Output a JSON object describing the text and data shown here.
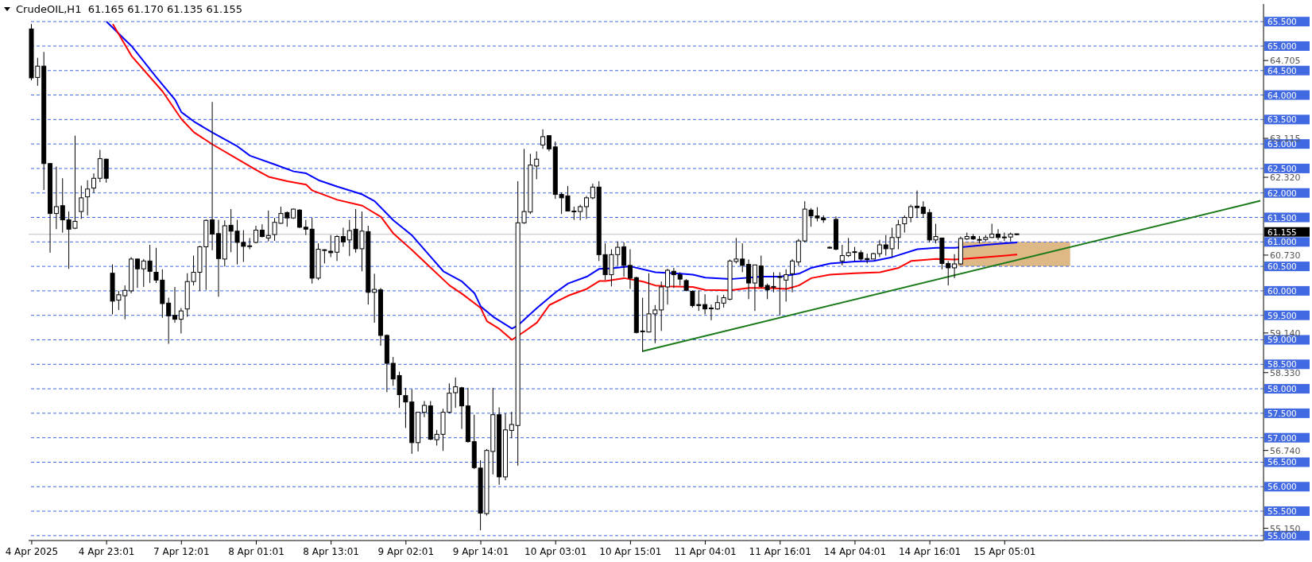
{
  "chart_data": {
    "type": "candlestick",
    "title": "CrudeOIL,H1  61.165 61.170 61.135 61.155",
    "categories": [
      "4 Apr 2025",
      null,
      null,
      null,
      null,
      null,
      null,
      null,
      null,
      null,
      null,
      null,
      "4 Apr 23:01",
      null,
      null,
      null,
      null,
      null,
      null,
      null,
      null,
      null,
      null,
      null,
      "7 Apr 12:01",
      null,
      null,
      null,
      null,
      null,
      null,
      null,
      null,
      null,
      null,
      null,
      "8 Apr 01:01",
      null,
      null,
      null,
      null,
      null,
      null,
      null,
      null,
      null,
      null,
      null,
      "8 Apr 13:01",
      null,
      null,
      null,
      null,
      null,
      null,
      null,
      null,
      null,
      null,
      null,
      "9 Apr 02:01",
      null,
      null,
      null,
      null,
      null,
      null,
      null,
      null,
      null,
      null,
      null,
      "9 Apr 14:01",
      null,
      null,
      null,
      null,
      null,
      null,
      null,
      null,
      null,
      null,
      null,
      "10 Apr 03:01",
      null,
      null,
      null,
      null,
      null,
      null,
      null,
      null,
      null,
      null,
      null,
      "10 Apr 15:01",
      null,
      null,
      null,
      null,
      null,
      null,
      null,
      null,
      null,
      null,
      null,
      "11 Apr 04:01",
      null,
      null,
      null,
      null,
      null,
      null,
      null,
      null,
      null,
      null,
      null,
      "11 Apr 16:01",
      null,
      null,
      null,
      null,
      null,
      null,
      null,
      null,
      null,
      null,
      null,
      "14 Apr 04:01",
      null,
      null,
      null,
      null,
      null,
      null,
      null,
      null,
      null,
      null,
      null,
      "14 Apr 16:01",
      null,
      null,
      null,
      null,
      null,
      null,
      null,
      null,
      null,
      null,
      null,
      "15 Apr 05:01",
      null,
      null,
      null,
      null,
      null,
      null,
      null,
      null,
      null,
      null,
      null,
      null,
      null,
      null,
      null,
      null,
      null,
      null,
      null,
      null,
      null,
      null,
      null,
      null,
      null,
      null,
      null,
      null,
      null,
      null,
      null,
      null,
      null,
      null,
      null,
      null,
      null,
      null,
      null,
      null,
      null
    ],
    "ohlc": [
      [
        65.35,
        65.45,
        64.3,
        64.35
      ],
      [
        64.36,
        64.76,
        64.19,
        64.59
      ],
      [
        64.59,
        64.88,
        62.06,
        62.6
      ],
      [
        62.6,
        62.61,
        60.78,
        61.58
      ],
      [
        61.58,
        62.54,
        61.26,
        61.72
      ],
      [
        61.74,
        62.3,
        61.19,
        61.45
      ],
      [
        61.45,
        61.62,
        60.45,
        61.26
      ],
      [
        61.28,
        63.17,
        61.26,
        61.42
      ],
      [
        61.62,
        62.15,
        61.47,
        61.9
      ],
      [
        61.92,
        62.26,
        61.54,
        62.08
      ],
      [
        62.1,
        62.4,
        62.0,
        62.3
      ],
      [
        62.3,
        62.88,
        62.22,
        62.7
      ],
      [
        62.69,
        62.7,
        62.21,
        62.3
      ],
      [
        60.36,
        60.54,
        59.52,
        59.79
      ],
      [
        59.81,
        60.0,
        59.61,
        59.92
      ],
      [
        59.9,
        60.11,
        59.42,
        60.01
      ],
      [
        60.0,
        60.69,
        59.95,
        60.65
      ],
      [
        60.65,
        60.66,
        60.06,
        60.45
      ],
      [
        60.45,
        60.65,
        60.08,
        60.61
      ],
      [
        60.61,
        60.94,
        60.16,
        60.4
      ],
      [
        60.38,
        60.88,
        60.16,
        60.22
      ],
      [
        60.22,
        60.44,
        59.45,
        59.74
      ],
      [
        59.75,
        59.86,
        58.92,
        59.49
      ],
      [
        59.5,
        60.08,
        59.35,
        59.42
      ],
      [
        59.42,
        59.65,
        59.13,
        59.59
      ],
      [
        59.63,
        60.36,
        59.47,
        60.19
      ],
      [
        60.19,
        60.72,
        60.11,
        60.38
      ],
      [
        60.38,
        60.92,
        60.0,
        60.9
      ],
      [
        60.9,
        61.46,
        60.02,
        61.44
      ],
      [
        61.45,
        63.86,
        60.83,
        61.16
      ],
      [
        61.17,
        61.45,
        59.88,
        60.66
      ],
      [
        60.65,
        61.44,
        60.5,
        61.33
      ],
      [
        61.34,
        61.67,
        60.79,
        61.22
      ],
      [
        61.22,
        61.45,
        60.54,
        60.99
      ],
      [
        60.99,
        61.24,
        60.59,
        60.91
      ],
      [
        60.91,
        61.08,
        60.85,
        60.92
      ],
      [
        60.99,
        61.33,
        60.97,
        61.24
      ],
      [
        61.24,
        61.36,
        61.09,
        61.11
      ],
      [
        61.08,
        61.64,
        61.01,
        61.13
      ],
      [
        61.15,
        61.49,
        61.02,
        61.4
      ],
      [
        61.38,
        61.72,
        61.37,
        61.58
      ],
      [
        61.6,
        61.62,
        61.31,
        61.49
      ],
      [
        61.49,
        61.68,
        61.47,
        61.67
      ],
      [
        61.65,
        61.67,
        61.28,
        61.3
      ],
      [
        61.3,
        61.45,
        61.14,
        61.26
      ],
      [
        61.26,
        61.49,
        60.15,
        60.26
      ],
      [
        60.26,
        60.97,
        60.22,
        60.85
      ],
      [
        60.83,
        60.85,
        60.56,
        60.84
      ],
      [
        60.81,
        61.14,
        60.69,
        60.78
      ],
      [
        60.79,
        61.14,
        60.61,
        61.11
      ],
      [
        61.11,
        61.29,
        60.9,
        61.0
      ],
      [
        61.04,
        61.45,
        60.71,
        61.23
      ],
      [
        61.26,
        61.67,
        60.78,
        60.86
      ],
      [
        60.86,
        61.62,
        60.4,
        61.22
      ],
      [
        61.21,
        61.33,
        59.72,
        59.97
      ],
      [
        59.97,
        60.35,
        59.35,
        60.03
      ],
      [
        60.02,
        60.06,
        58.88,
        59.09
      ],
      [
        59.09,
        59.11,
        57.93,
        58.52
      ],
      [
        58.52,
        58.65,
        58.06,
        58.2
      ],
      [
        58.27,
        58.35,
        57.61,
        57.88
      ],
      [
        57.86,
        58.02,
        57.2,
        57.73
      ],
      [
        57.73,
        57.99,
        56.67,
        56.9
      ],
      [
        56.9,
        57.52,
        56.72,
        57.52
      ],
      [
        57.52,
        57.75,
        57.42,
        57.66
      ],
      [
        57.65,
        57.75,
        56.95,
        56.97
      ],
      [
        56.96,
        57.16,
        56.84,
        57.07
      ],
      [
        57.07,
        57.59,
        56.73,
        57.52
      ],
      [
        57.52,
        58.11,
        57.5,
        57.91
      ],
      [
        57.92,
        58.23,
        57.61,
        58.04
      ],
      [
        58.02,
        58.04,
        57.18,
        57.65
      ],
      [
        57.65,
        58.02,
        56.9,
        56.92
      ],
      [
        56.92,
        57.47,
        56.36,
        56.39
      ],
      [
        56.38,
        56.54,
        55.11,
        55.46
      ],
      [
        55.45,
        56.77,
        55.41,
        56.74
      ],
      [
        56.72,
        58.02,
        56.25,
        57.47
      ],
      [
        57.47,
        57.62,
        56.04,
        56.2
      ],
      [
        56.2,
        57.5,
        56.13,
        57.16
      ],
      [
        57.15,
        57.53,
        56.99,
        57.27
      ],
      [
        57.25,
        62.24,
        56.43,
        61.39
      ],
      [
        61.39,
        62.9,
        61.37,
        61.62
      ],
      [
        61.61,
        62.8,
        61.57,
        62.57
      ],
      [
        62.55,
        62.85,
        62.28,
        62.69
      ],
      [
        62.98,
        63.3,
        62.9,
        63.15
      ],
      [
        63.17,
        63.17,
        62.85,
        62.9
      ],
      [
        62.94,
        63.05,
        61.88,
        61.97
      ],
      [
        61.97,
        62.01,
        61.57,
        61.9
      ],
      [
        61.94,
        62.14,
        61.62,
        61.63
      ],
      [
        61.63,
        61.72,
        61.45,
        61.63
      ],
      [
        61.62,
        61.76,
        61.44,
        61.72
      ],
      [
        61.72,
        61.94,
        61.47,
        61.9
      ],
      [
        61.9,
        62.19,
        61.87,
        62.12
      ],
      [
        62.12,
        62.24,
        60.61,
        60.74
      ],
      [
        60.74,
        60.97,
        60.22,
        60.33
      ],
      [
        60.33,
        60.85,
        60.09,
        60.74
      ],
      [
        60.74,
        61.01,
        60.51,
        60.89
      ],
      [
        60.9,
        60.99,
        60.29,
        60.52
      ],
      [
        60.52,
        60.85,
        60.04,
        60.26
      ],
      [
        60.27,
        60.29,
        59.13,
        59.15
      ],
      [
        59.18,
        59.86,
        58.75,
        59.18
      ],
      [
        59.16,
        60.36,
        59.15,
        59.53
      ],
      [
        59.53,
        59.71,
        58.93,
        59.61
      ],
      [
        59.61,
        60.19,
        59.18,
        60.08
      ],
      [
        60.08,
        60.45,
        59.72,
        60.42
      ],
      [
        60.4,
        60.47,
        60.06,
        60.33
      ],
      [
        60.33,
        60.38,
        60.11,
        60.24
      ],
      [
        60.21,
        60.24,
        59.99,
        60.01
      ],
      [
        59.99,
        60.01,
        59.66,
        59.7
      ],
      [
        59.72,
        60.01,
        59.59,
        59.7
      ],
      [
        59.72,
        59.93,
        59.52,
        59.63
      ],
      [
        59.65,
        59.72,
        59.4,
        59.65
      ],
      [
        59.63,
        59.91,
        59.61,
        59.76
      ],
      [
        59.75,
        59.92,
        59.66,
        59.86
      ],
      [
        59.83,
        60.64,
        59.81,
        60.61
      ],
      [
        60.6,
        61.08,
        60.56,
        60.65
      ],
      [
        60.65,
        60.97,
        60.38,
        60.52
      ],
      [
        60.54,
        60.64,
        59.83,
        60.16
      ],
      [
        60.16,
        60.53,
        59.59,
        60.53
      ],
      [
        60.51,
        60.72,
        60.06,
        60.09
      ],
      [
        60.11,
        60.15,
        59.83,
        60.02
      ],
      [
        60.09,
        60.38,
        59.97,
        60.09
      ],
      [
        60.28,
        60.38,
        59.5,
        60.29
      ],
      [
        60.22,
        60.44,
        59.78,
        60.33
      ],
      [
        60.35,
        60.65,
        59.97,
        60.61
      ],
      [
        60.59,
        61.06,
        60.51,
        61.02
      ],
      [
        61.02,
        61.83,
        60.99,
        61.67
      ],
      [
        61.65,
        61.69,
        61.31,
        61.53
      ],
      [
        61.53,
        61.71,
        61.42,
        61.49
      ],
      [
        61.49,
        61.54,
        61.39,
        61.45
      ],
      [
        60.88,
        60.91,
        60.86,
        60.89
      ],
      [
        61.46,
        61.52,
        60.83,
        60.85
      ],
      [
        60.61,
        60.94,
        60.52,
        60.72
      ],
      [
        60.72,
        61.08,
        60.69,
        60.78
      ],
      [
        60.79,
        60.9,
        60.61,
        60.8
      ],
      [
        60.78,
        60.83,
        60.61,
        60.65
      ],
      [
        60.66,
        60.76,
        60.56,
        60.64
      ],
      [
        60.65,
        60.78,
        60.65,
        60.76
      ],
      [
        60.76,
        61.04,
        60.69,
        60.94
      ],
      [
        60.94,
        61.14,
        60.72,
        60.86
      ],
      [
        60.86,
        61.29,
        60.69,
        61.09
      ],
      [
        61.09,
        61.45,
        60.85,
        61.35
      ],
      [
        61.37,
        61.54,
        61.19,
        61.5
      ],
      [
        61.5,
        61.76,
        61.4,
        61.72
      ],
      [
        61.73,
        62.05,
        61.49,
        61.7
      ],
      [
        61.71,
        61.83,
        61.49,
        61.58
      ],
      [
        61.6,
        61.67,
        60.99,
        61.04
      ],
      [
        61.04,
        61.37,
        60.97,
        61.11
      ],
      [
        61.08,
        61.08,
        60.44,
        60.56
      ],
      [
        60.56,
        60.61,
        60.11,
        60.47
      ],
      [
        60.47,
        60.75,
        60.26,
        60.55
      ],
      [
        60.55,
        61.11,
        60.53,
        61.07
      ],
      [
        61.06,
        61.19,
        61.04,
        61.11
      ],
      [
        61.11,
        61.16,
        61.04,
        61.06
      ],
      [
        61.05,
        61.12,
        60.97,
        61.05
      ],
      [
        61.05,
        61.14,
        61.01,
        61.09
      ],
      [
        61.09,
        61.37,
        61.08,
        61.16
      ],
      [
        61.16,
        61.26,
        61.04,
        61.09
      ],
      [
        61.1,
        61.19,
        61.02,
        61.1
      ],
      [
        61.1,
        61.19,
        61.01,
        61.16
      ],
      [
        61.165,
        61.17,
        61.135,
        61.155
      ],
      null,
      null,
      null,
      null,
      null,
      null,
      null,
      null,
      null,
      null,
      null,
      null,
      null,
      null,
      null,
      null,
      null,
      null,
      null,
      null,
      null,
      null,
      null,
      null,
      null,
      null,
      null,
      null,
      null,
      null,
      null,
      null,
      null,
      null,
      null,
      null,
      null,
      null,
      null
    ],
    "series": [
      {
        "type": "line",
        "color": "#0000ff",
        "values": [
          null,
          null,
          null,
          null,
          null,
          null,
          null,
          null,
          null,
          null,
          null,
          null,
          65.5,
          null,
          null,
          null,
          65.0,
          null,
          null,
          null,
          64.36,
          null,
          null,
          63.9,
          63.65,
          null,
          63.46,
          null,
          null,
          63.23,
          null,
          null,
          null,
          62.95,
          null,
          62.76,
          null,
          null,
          null,
          62.58,
          null,
          null,
          62.44,
          null,
          62.4,
          null,
          62.26,
          null,
          null,
          62.13,
          null,
          null,
          null,
          61.97,
          null,
          61.83,
          null,
          null,
          61.44,
          null,
          null,
          61.13,
          null,
          null,
          60.69,
          null,
          60.4,
          null,
          null,
          60.19,
          null,
          59.95,
          59.68,
          null,
          59.47,
          null,
          null,
          59.23,
          59.3,
          null,
          null,
          59.65,
          null,
          null,
          59.97,
          null,
          60.15,
          null,
          null,
          60.29,
          null,
          60.45,
          null,
          60.46,
          null,
          null,
          60.5,
          null,
          null,
          null,
          60.38,
          null,
          null,
          null,
          60.35,
          null,
          60.33,
          null,
          60.27,
          null,
          null,
          null,
          60.24,
          null,
          null,
          null,
          null,
          60.29,
          null,
          null,
          60.29,
          null,
          null,
          60.35,
          null,
          60.47,
          null,
          null,
          60.56,
          null,
          null,
          null,
          60.6,
          null,
          null,
          60.61,
          null,
          null,
          60.69,
          null,
          null,
          null,
          60.85,
          null,
          null,
          60.88,
          null,
          null,
          60.88,
          null,
          null,
          null,
          null,
          60.94,
          null,
          null,
          null,
          null,
          60.99,
          null,
          null,
          null,
          null,
          null,
          null,
          null,
          null,
          null,
          null,
          null,
          null,
          null,
          null,
          null,
          null,
          null,
          null,
          null,
          null,
          null,
          null,
          null,
          null,
          null,
          null,
          null,
          null,
          null,
          null,
          null,
          null,
          null,
          null,
          null,
          null,
          null,
          null,
          null
        ]
      },
      {
        "type": "line",
        "color": "#ff0000",
        "values": [
          null,
          null,
          null,
          null,
          null,
          null,
          null,
          null,
          null,
          null,
          null,
          null,
          null,
          65.45,
          null,
          null,
          64.8,
          null,
          null,
          null,
          null,
          64.07,
          null,
          null,
          63.51,
          null,
          63.24,
          null,
          null,
          62.99,
          null,
          null,
          null,
          62.69,
          null,
          null,
          62.47,
          null,
          62.33,
          null,
          null,
          62.24,
          null,
          null,
          62.17,
          62.05,
          null,
          null,
          null,
          61.86,
          null,
          null,
          null,
          61.74,
          null,
          null,
          61.51,
          null,
          61.17,
          null,
          null,
          60.83,
          null,
          null,
          60.47,
          null,
          null,
          60.11,
          null,
          59.94,
          null,
          null,
          59.65,
          59.38,
          null,
          59.22,
          null,
          59.0,
          null,
          59.17,
          null,
          59.35,
          null,
          59.71,
          null,
          null,
          59.9,
          null,
          null,
          60.04,
          null,
          60.2,
          60.2,
          null,
          null,
          60.26,
          null,
          null,
          60.19,
          null,
          60.11,
          null,
          60.09,
          null,
          null,
          null,
          60.08,
          null,
          60.02,
          null,
          null,
          null,
          60.01,
          null,
          null,
          60.06,
          null,
          null,
          60.06,
          null,
          null,
          60.04,
          null,
          60.11,
          null,
          60.26,
          null,
          null,
          60.33,
          null,
          null,
          null,
          60.36,
          null,
          null,
          null,
          60.38,
          null,
          null,
          60.47,
          null,
          60.61,
          null,
          null,
          null,
          60.65,
          null,
          null,
          60.64,
          null,
          null,
          null,
          null,
          60.69,
          null,
          null,
          null,
          null,
          60.74,
          null,
          null,
          null,
          null,
          null,
          null,
          null,
          null,
          null,
          null,
          null,
          null,
          null,
          null,
          null,
          null,
          null,
          null,
          null,
          null,
          null,
          null,
          null,
          null,
          null,
          null,
          null,
          null,
          null,
          null,
          null,
          null,
          null,
          null,
          null,
          null,
          null,
          null,
          null
        ]
      },
      {
        "type": "line",
        "color": "#1a7a1a",
        "values": [
          null,
          null,
          null,
          null,
          null,
          null,
          null,
          null,
          null,
          null,
          null,
          null,
          null,
          null,
          null,
          null,
          null,
          null,
          null,
          null,
          null,
          null,
          null,
          null,
          null,
          null,
          null,
          null,
          null,
          null,
          null,
          null,
          null,
          null,
          null,
          null,
          null,
          null,
          null,
          null,
          null,
          null,
          null,
          null,
          null,
          null,
          null,
          null,
          null,
          null,
          null,
          null,
          null,
          null,
          null,
          null,
          null,
          null,
          null,
          null,
          null,
          null,
          null,
          null,
          null,
          null,
          null,
          null,
          null,
          null,
          null,
          null,
          null,
          null,
          null,
          null,
          null,
          null,
          null,
          null,
          null,
          null,
          null,
          null,
          null,
          null,
          null,
          null,
          null,
          null,
          null,
          null,
          null,
          null,
          null,
          null,
          null,
          null,
          58.77,
          null,
          null,
          null,
          null,
          null,
          null,
          null,
          null,
          null,
          null,
          null,
          null,
          null,
          null,
          null,
          null,
          null,
          null,
          null,
          null,
          null,
          null,
          null,
          null,
          null,
          null,
          null,
          null,
          null,
          null,
          null,
          null,
          null,
          null,
          null,
          null,
          null,
          null,
          null,
          null,
          null,
          null,
          null,
          null,
          null,
          null,
          null,
          null,
          null,
          null,
          null,
          null,
          null,
          null,
          null,
          null,
          null,
          null,
          null,
          null,
          null,
          null,
          null,
          null,
          null,
          null,
          null,
          null,
          null,
          null,
          null,
          null,
          null,
          null,
          null,
          null,
          null,
          null,
          null,
          null,
          null,
          null,
          null,
          null,
          null,
          null,
          null,
          null,
          null,
          null,
          null,
          null,
          null,
          null,
          null,
          null,
          null,
          null,
          61.84
        ]
      }
    ],
    "ylim": [
      54.9,
      65.86
    ],
    "yticks": [
      {
        "value": 55.15,
        "label": "55.150"
      },
      {
        "value": 56.74,
        "label": "56.740"
      },
      {
        "value": 58.33,
        "label": "58.330"
      },
      {
        "value": 59.14,
        "label": "59.140"
      },
      {
        "value": 60.73,
        "label": "60.730"
      },
      {
        "value": 62.32,
        "label": "62.320"
      },
      {
        "value": 63.115,
        "label": "63.115"
      },
      {
        "value": 64.705,
        "label": "64.705"
      }
    ],
    "ref_lines": [
      {
        "axis": "y",
        "value": 55.0,
        "label": "55.000",
        "color": "#4169e1",
        "line_style": "dashed"
      },
      {
        "axis": "y",
        "value": 55.5,
        "label": "55.500",
        "color": "#4169e1",
        "line_style": "dashed"
      },
      {
        "axis": "y",
        "value": 56.0,
        "label": "56.000",
        "color": "#4169e1",
        "line_style": "dashed"
      },
      {
        "axis": "y",
        "value": 56.5,
        "label": "56.500",
        "color": "#4169e1",
        "line_style": "dashed"
      },
      {
        "axis": "y",
        "value": 57.0,
        "label": "57.000",
        "color": "#4169e1",
        "line_style": "dashed"
      },
      {
        "axis": "y",
        "value": 57.5,
        "label": "57.500",
        "color": "#4169e1",
        "line_style": "dashed"
      },
      {
        "axis": "y",
        "value": 58.0,
        "label": "58.000",
        "color": "#4169e1",
        "line_style": "dashed"
      },
      {
        "axis": "y",
        "value": 58.5,
        "label": "58.500",
        "color": "#4169e1",
        "line_style": "dashed"
      },
      {
        "axis": "y",
        "value": 59.0,
        "label": "59.000",
        "color": "#4169e1",
        "line_style": "dashed"
      },
      {
        "axis": "y",
        "value": 59.5,
        "label": "59.500",
        "color": "#4169e1",
        "line_style": "dashed"
      },
      {
        "axis": "y",
        "value": 60.0,
        "label": "60.000",
        "color": "#4169e1",
        "line_style": "dashed"
      },
      {
        "axis": "y",
        "value": 60.5,
        "label": "60.500",
        "color": "#4169e1",
        "line_style": "dashed"
      },
      {
        "axis": "y",
        "value": 61.0,
        "label": "61.000",
        "color": "#4169e1",
        "line_style": "dashed"
      },
      {
        "axis": "y",
        "value": 61.5,
        "label": "61.500",
        "color": "#4169e1",
        "line_style": "dashed"
      },
      {
        "axis": "y",
        "value": 62.0,
        "label": "62.000",
        "color": "#4169e1",
        "line_style": "dashed"
      },
      {
        "axis": "y",
        "value": 62.5,
        "label": "62.500",
        "color": "#4169e1",
        "line_style": "dashed"
      },
      {
        "axis": "y",
        "value": 63.0,
        "label": "63.000",
        "color": "#4169e1",
        "line_style": "dashed"
      },
      {
        "axis": "y",
        "value": 63.5,
        "label": "63.500",
        "color": "#4169e1",
        "line_style": "dashed"
      },
      {
        "axis": "y",
        "value": 64.0,
        "label": "64.000",
        "color": "#4169e1",
        "line_style": "dashed"
      },
      {
        "axis": "y",
        "value": 64.5,
        "label": "64.500",
        "color": "#4169e1",
        "line_style": "dashed"
      },
      {
        "axis": "y",
        "value": 65.0,
        "label": "65.000",
        "color": "#4169e1",
        "line_style": "dashed"
      },
      {
        "axis": "y",
        "value": 65.5,
        "label": "65.500",
        "color": "#4169e1",
        "line_style": "dashed"
      },
      {
        "axis": "y",
        "value": 61.155,
        "label": "61.155",
        "color": "#c0c0c0",
        "line_style": "solid"
      }
    ],
    "bands": [
      {
        "axis": "y",
        "from": 60.5,
        "to": 61.0,
        "color": "#deb887"
      }
    ]
  }
}
